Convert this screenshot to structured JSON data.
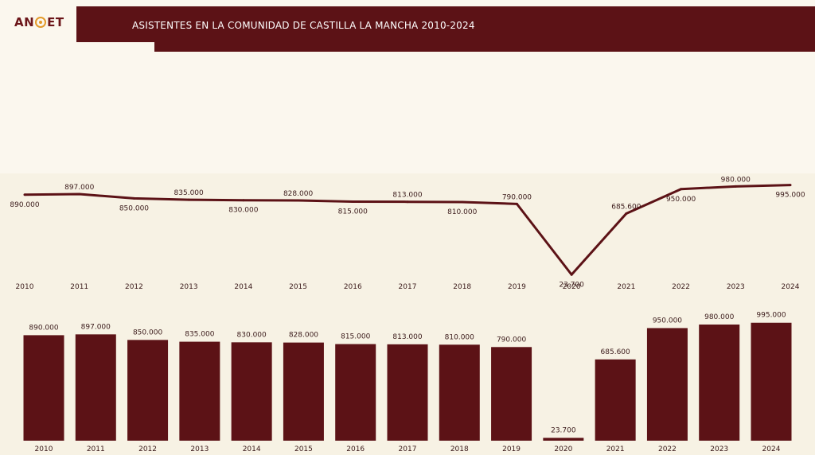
{
  "header": {
    "title": "ASISTENTES EN LA COMUNIDAD DE CASTILLA LA MANCHA 2010-2024",
    "logo_text_left": "AN",
    "logo_text_right": "ET",
    "logo_icon": "target-ring-icon"
  },
  "colors": {
    "accent": "#5c1216",
    "logo_ring": "#e39a2a",
    "background": "#f7f2e4"
  },
  "chart_data": [
    {
      "type": "line",
      "categories": [
        "2010",
        "2011",
        "2012",
        "2013",
        "2014",
        "2015",
        "2016",
        "2017",
        "2018",
        "2019",
        "2020",
        "2021",
        "2022",
        "2023",
        "2024"
      ],
      "values": [
        890000,
        897000,
        850000,
        835000,
        830000,
        828000,
        815000,
        813000,
        810000,
        790000,
        23700,
        685600,
        950000,
        980000,
        995000
      ],
      "labels": [
        "890.000",
        "897.000",
        "850.000",
        "835.000",
        "830.000",
        "828.000",
        "815.000",
        "813.000",
        "810.000",
        "790.000",
        "23.700",
        "685.600",
        "950.000",
        "980.000",
        "995.000"
      ],
      "title": "",
      "xlabel": "",
      "ylabel": "",
      "ylim": [
        0,
        1000000
      ],
      "grid": false
    },
    {
      "type": "bar",
      "categories": [
        "2010",
        "2011",
        "2012",
        "2013",
        "2014",
        "2015",
        "2016",
        "2017",
        "2018",
        "2019",
        "2020",
        "2021",
        "2022",
        "2023",
        "2024"
      ],
      "values": [
        890000,
        897000,
        850000,
        835000,
        830000,
        828000,
        815000,
        813000,
        810000,
        790000,
        23700,
        685600,
        950000,
        980000,
        995000
      ],
      "labels": [
        "890.000",
        "897.000",
        "850.000",
        "835.000",
        "830.000",
        "828.000",
        "815.000",
        "813.000",
        "810.000",
        "790.000",
        "23.700",
        "685.600",
        "950.000",
        "980.000",
        "995.000"
      ],
      "title": "",
      "xlabel": "",
      "ylabel": "",
      "ylim": [
        0,
        1000000
      ],
      "grid": false
    }
  ]
}
